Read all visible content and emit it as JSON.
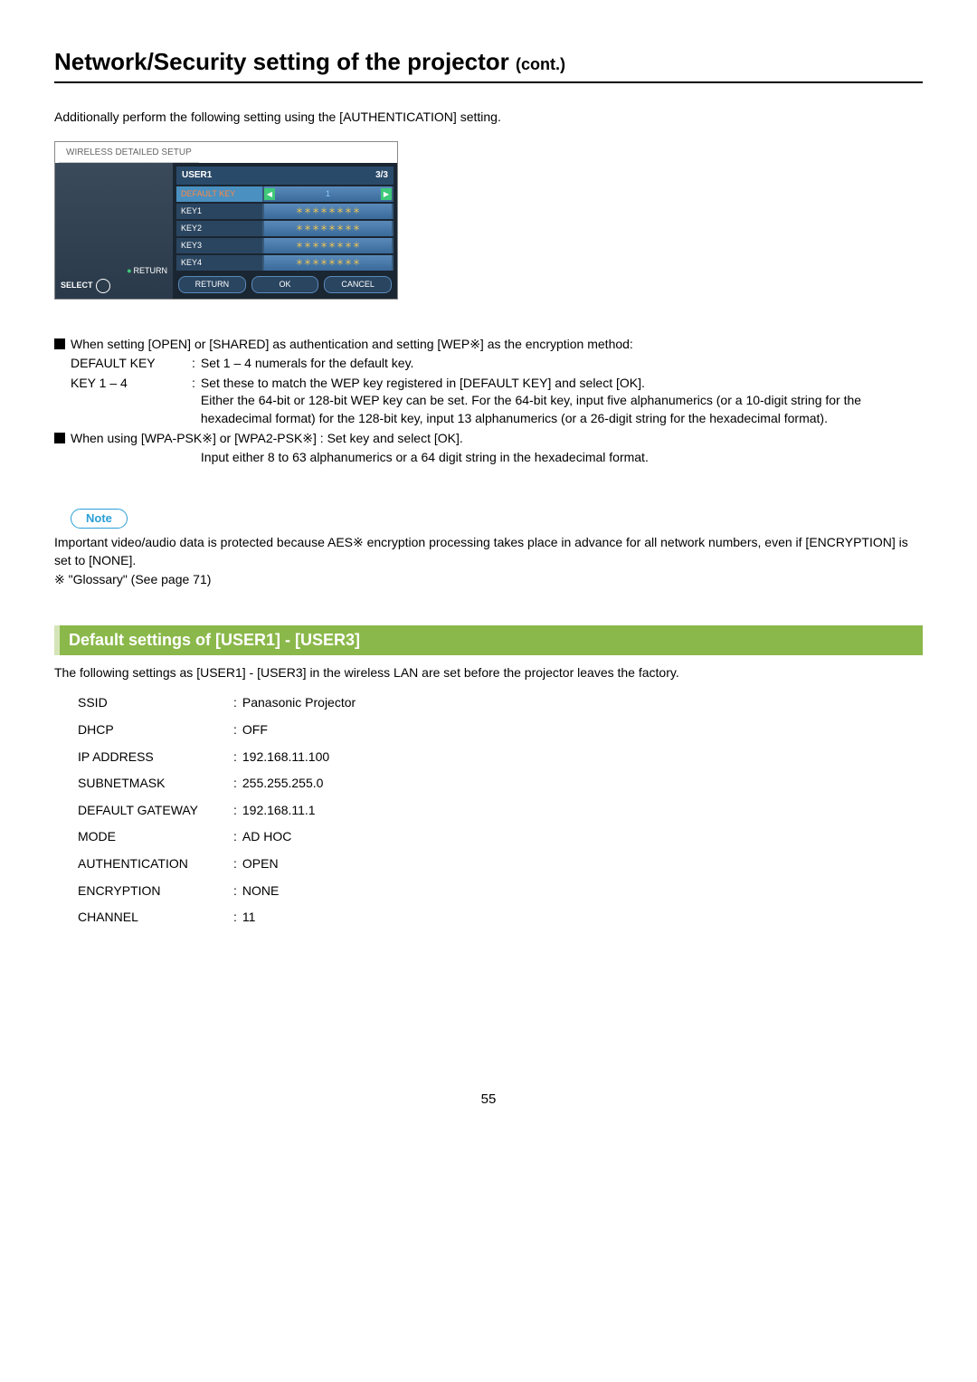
{
  "title": {
    "main": "Network/Security setting of the projector ",
    "suffix": "(cont.)"
  },
  "intro": "Additionally perform the following setting using the [AUTHENTICATION] setting.",
  "menu": {
    "tab": "WIRELESS DETAILED SETUP",
    "left": {
      "return": "RETURN",
      "select": "SELECT"
    },
    "header": {
      "user": "USER1",
      "page": "3/3"
    },
    "rows": [
      {
        "label": "DEFAULT KEY",
        "value": "1",
        "highlight": true,
        "arrows": true
      },
      {
        "label": "KEY1",
        "value": "＊＊＊＊＊＊＊＊",
        "stars": true
      },
      {
        "label": "KEY2",
        "value": "＊＊＊＊＊＊＊＊",
        "stars": true
      },
      {
        "label": "KEY3",
        "value": "＊＊＊＊＊＊＊＊",
        "stars": true
      },
      {
        "label": "KEY4",
        "value": "＊＊＊＊＊＊＊＊",
        "stars": true
      }
    ],
    "buttons": [
      "RETURN",
      "OK",
      "CANCEL"
    ]
  },
  "content": {
    "bullet1": "When setting [OPEN] or [SHARED] as authentication and setting [WEP※] as the encryption method:",
    "default_key_label": "DEFAULT KEY",
    "default_key_text": "Set 1 – 4 numerals for the default key.",
    "key14_label": "KEY 1 – 4",
    "key14_line1": "Set these to match the WEP key registered in [DEFAULT KEY] and select [OK].",
    "key14_line2": "Either the 64-bit or 128-bit WEP key can be set. For the 64-bit key, input five alphanumerics (or a 10-digit string for the hexadecimal format) for the 128-bit key, input 13 alphanumerics (or a 26-digit string for the hexadecimal format).",
    "bullet2": "When using [WPA-PSK※] or [WPA2-PSK※] : Set key and select [OK].",
    "bullet2_sub": "Input either 8 to 63 alphanumerics or a 64 digit string in the hexadecimal format."
  },
  "note": {
    "label": "Note",
    "text": "Important video/audio data is protected because AES※ encryption processing takes place in advance for all network numbers, even if [ENCRYPTION] is set to [NONE].",
    "glossary": "※ \"Glossary\" (See page 71)"
  },
  "defaults_section": {
    "header": "Default settings of [USER1] - [USER3]",
    "intro": "The following settings as [USER1] - [USER3] in the wireless LAN are set before the projector leaves the factory.",
    "rows": [
      {
        "label": "SSID",
        "value": "Panasonic Projector"
      },
      {
        "label": "DHCP",
        "value": "OFF"
      },
      {
        "label": "IP ADDRESS",
        "value": "192.168.11.100"
      },
      {
        "label": "SUBNETMASK",
        "value": "255.255.255.0"
      },
      {
        "label": "DEFAULT GATEWAY",
        "value": "192.168.11.1"
      },
      {
        "label": "MODE",
        "value": "AD HOC"
      },
      {
        "label": "AUTHENTICATION",
        "value": "OPEN"
      },
      {
        "label": "ENCRYPTION",
        "value": "NONE"
      },
      {
        "label": "CHANNEL",
        "value": "11"
      }
    ]
  },
  "page_number": "55"
}
